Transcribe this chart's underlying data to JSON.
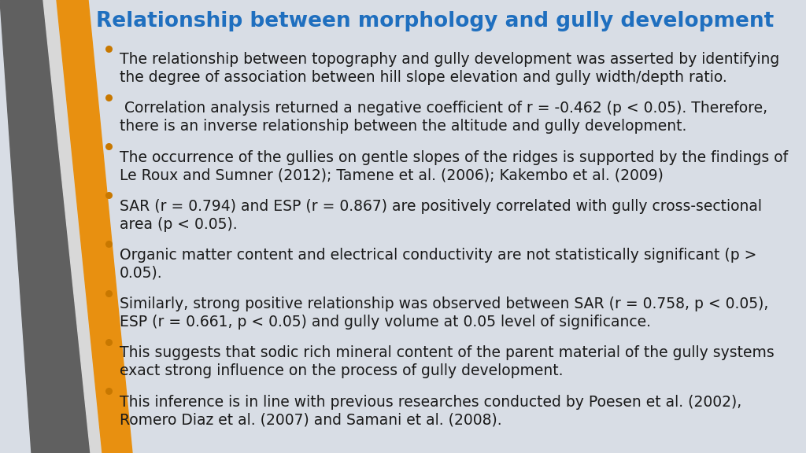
{
  "title": "Relationship between morphology and gully development",
  "title_color": "#1F6FBF",
  "title_fontsize": 19,
  "bg_color": "#D8DDE5",
  "bullet_points": [
    "The relationship between topography and gully development was asserted by identifying\nthe degree of association between hill slope elevation and gully width/depth ratio.",
    " Correlation analysis returned a negative coefficient of r = -0.462 (p < 0.05). Therefore,\nthere is an inverse relationship between the altitude and gully development.",
    "The occurrence of the gullies on gentle slopes of the ridges is supported by the findings of\nLe Roux and Sumner (2012); Tamene et al. (2006); Kakembo et al. (2009)",
    "SAR (r = 0.794) and ESP (r = 0.867) are positively correlated with gully cross-sectional\narea (p < 0.05).",
    "Organic matter content and electrical conductivity are not statistically significant (p >\n0.05).",
    "Similarly, strong positive relationship was observed between SAR (r = 0.758, p < 0.05),\nESP (r = 0.661, p < 0.05) and gully volume at 0.05 level of significance.",
    "This suggests that sodic rich mineral content of the parent material of the gully systems\nexact strong influence on the process of gully development.",
    "This inference is in line with previous researches conducted by Poesen et al. (2002),\nRomero Diaz et al. (2007) and Samani et al. (2008)."
  ],
  "text_color": "#1A1A1A",
  "text_fontsize": 13.5,
  "bullet_color": "#C87800",
  "bar_gray_color": "#606060",
  "bar_light_color": "#C8C8C8",
  "bar_orange_color": "#E89010"
}
